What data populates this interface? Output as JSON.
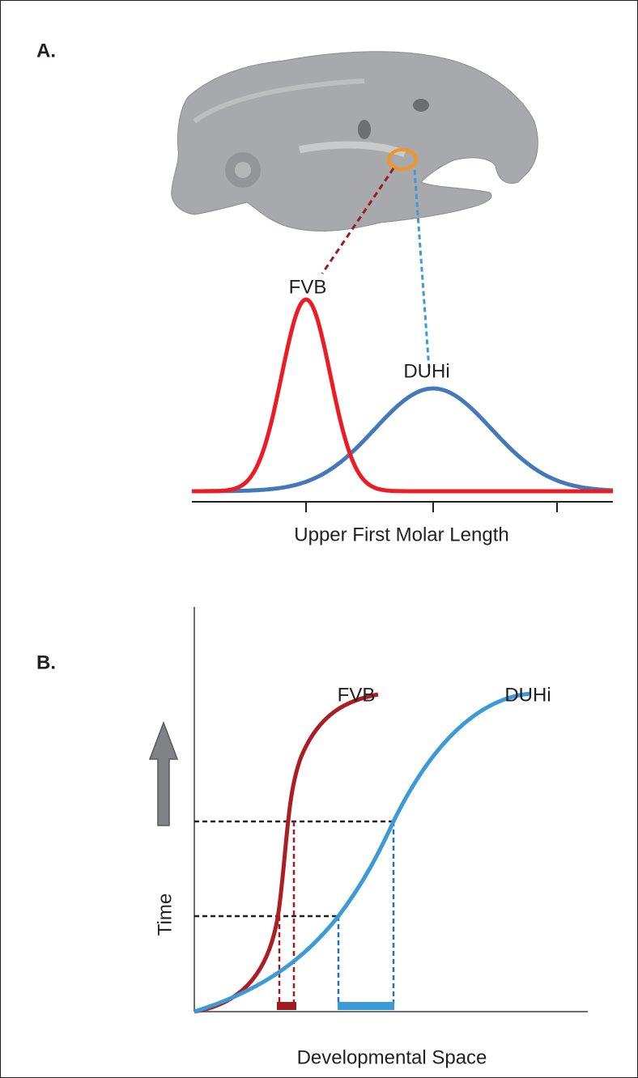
{
  "panel_a": {
    "label": "A.",
    "curve_labels": [
      "FVB",
      "DUHi"
    ],
    "x_axis_label": "Upper First Molar Length"
  },
  "panel_b": {
    "label": "B.",
    "curve_labels": [
      "FVB",
      "DUHi"
    ],
    "y_axis_label": "Time",
    "x_axis_label": "Developmental Space"
  }
}
